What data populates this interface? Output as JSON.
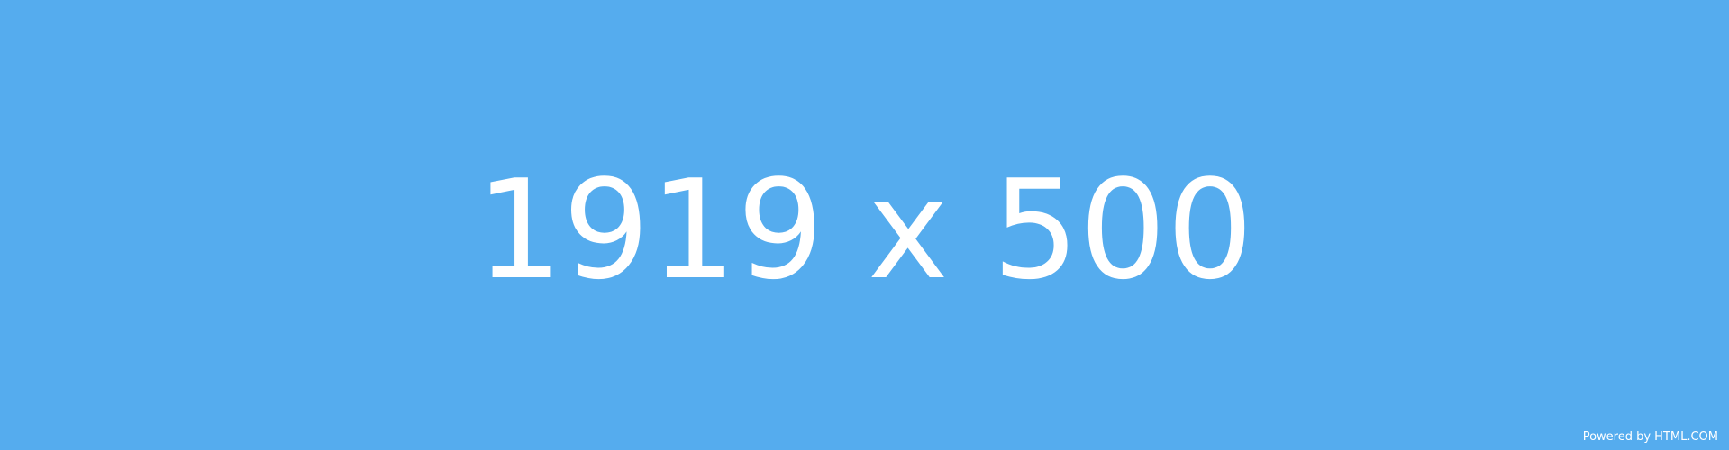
{
  "placeholder": {
    "dimensions_text": "1919 x 500",
    "credit_text": "Powered by HTML.COM"
  },
  "colors": {
    "background": "#55acee",
    "foreground": "#ffffff"
  }
}
